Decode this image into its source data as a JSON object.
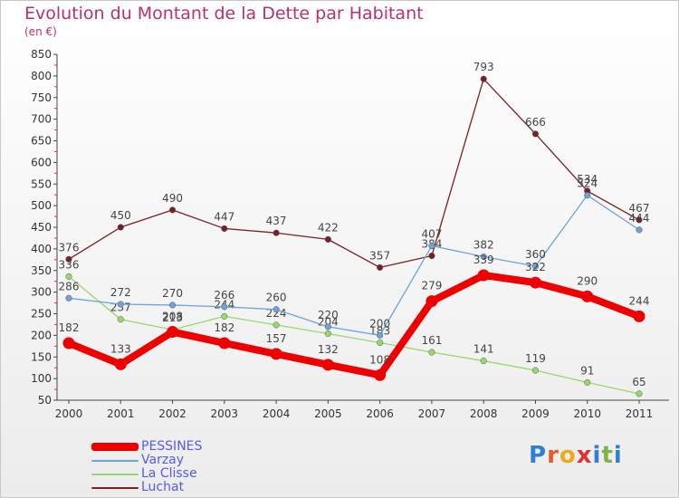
{
  "header": {
    "title": "Evolution du Montant de la Dette par Habitant",
    "unit": "(en €)"
  },
  "logo": {
    "letters": [
      "P",
      "r",
      "o",
      "x",
      "i",
      "t",
      "i"
    ],
    "colors": [
      "#2f7fd6",
      "#e85a2b",
      "#f0a81c",
      "#e3312f",
      "#2f7fd6",
      "#7cb342",
      "#2f7fd6"
    ]
  },
  "chart_data": {
    "type": "line",
    "title": "Evolution du Montant de la Dette par Habitant",
    "ylabel": "(en €)",
    "xlabel": "",
    "categories": [
      "2000",
      "2001",
      "2002",
      "2003",
      "2004",
      "2005",
      "2006",
      "2007",
      "2008",
      "2009",
      "2010",
      "2011"
    ],
    "y_ticks": [
      50,
      100,
      150,
      200,
      250,
      300,
      350,
      400,
      450,
      500,
      550,
      600,
      650,
      700,
      750,
      800,
      850
    ],
    "ylim": [
      50,
      850
    ],
    "grid": false,
    "legend_position": "bottom-left",
    "series": [
      {
        "name": "Luchat",
        "color": "#7a1f24",
        "width": 1.3,
        "values": [
          376,
          450,
          490,
          447,
          437,
          422,
          357,
          384,
          793,
          666,
          534,
          467
        ]
      },
      {
        "name": "La Clisse",
        "color": "#98d86a",
        "width": 1.3,
        "values": [
          336,
          237,
          213,
          244,
          224,
          204,
          183,
          161,
          141,
          119,
          91,
          65
        ]
      },
      {
        "name": "Varzay",
        "color": "#6fa3d6",
        "width": 1.3,
        "values": [
          286,
          272,
          270,
          266,
          260,
          220,
          200,
          407,
          382,
          360,
          524,
          444
        ]
      },
      {
        "name": "PESSINES",
        "color": "#ee0000",
        "width": 8,
        "values": [
          182,
          133,
          208,
          182,
          157,
          132,
          108,
          279,
          339,
          322,
          290,
          244
        ]
      }
    ],
    "legend_order": [
      "PESSINES",
      "Varzay",
      "La Clisse",
      "Luchat"
    ]
  }
}
